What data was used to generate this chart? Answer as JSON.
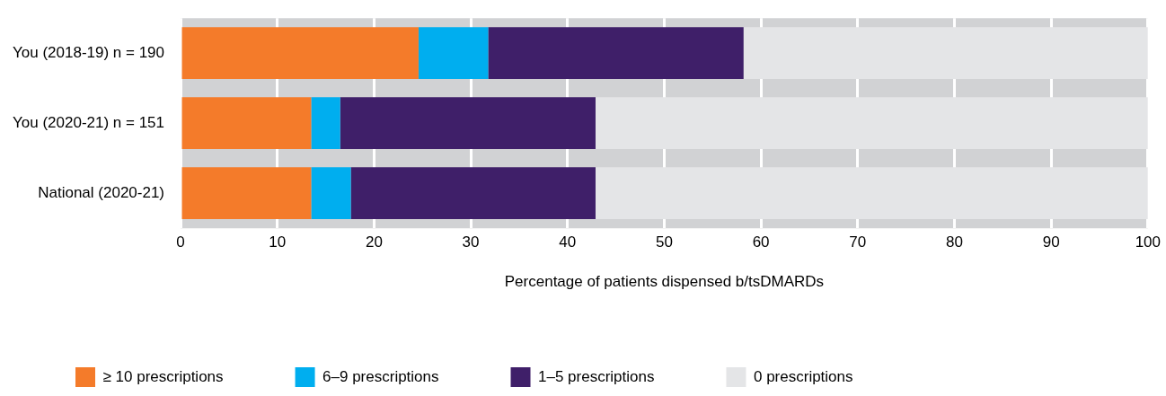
{
  "chart_data": {
    "type": "bar",
    "orientation": "horizontal",
    "stacked": true,
    "categories": [
      "You (2018-19) n = 190",
      "You (2020-21) n = 151",
      "National (2020-21)"
    ],
    "series": [
      {
        "name": "≥ 10 prescriptions",
        "color": "#f47b2a",
        "values": [
          24.6,
          13.5,
          13.5
        ]
      },
      {
        "name": "6–9 prescriptions",
        "color": "#00aeef",
        "values": [
          7.2,
          3.0,
          4.1
        ]
      },
      {
        "name": "1–5 prescriptions",
        "color": "#3f1f69",
        "values": [
          26.4,
          26.4,
          25.3
        ]
      },
      {
        "name": "0 prescriptions",
        "color": "#e4e5e7",
        "values": [
          41.8,
          57.1,
          57.1
        ]
      }
    ],
    "xlabel": "Percentage of patients dispensed b/tsDMARDs",
    "xlim": [
      0,
      100
    ],
    "xticks": [
      0,
      10,
      20,
      30,
      40,
      50,
      60,
      70,
      80,
      90,
      100
    ],
    "grid": "x",
    "legend": "bottom"
  }
}
